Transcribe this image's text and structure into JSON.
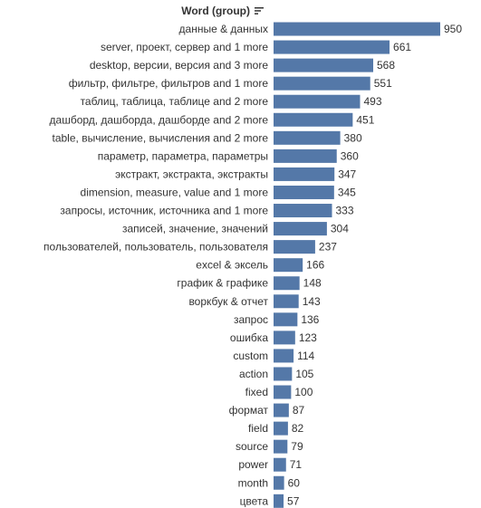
{
  "header": {
    "label": "Word (group)",
    "sort_icon": "sort-descending-icon"
  },
  "chart_data": {
    "type": "bar",
    "orientation": "horizontal",
    "title": "",
    "xlabel": "",
    "ylabel": "Word (group)",
    "xlim": [
      0,
      950
    ],
    "grid": false,
    "legend": "none",
    "bar_color": "#5478A8",
    "categories": [
      "данные & данных",
      "server, проект, сервер and 1 more",
      "desktop, версии, версия and 3 more",
      "фильтр, фильтре, фильтров and 1 more",
      "таблиц, таблица, таблице and 2 more",
      "дашборд, дашборда, дашборде and 2 more",
      "table, вычисление, вычисления and 2 more",
      "параметр, параметра, параметры",
      "экстракт, экстракта, экстракты",
      "dimension, measure, value and 1 more",
      "запросы, источник, источника and 1 more",
      "записей, значение, значений",
      "пользователей, пользователь, пользователя",
      "excel & эксель",
      "график & графике",
      "воркбук & отчет",
      "запрос",
      "ошибка",
      "custom",
      "action",
      "fixed",
      "формат",
      "field",
      "source",
      "power",
      "month",
      "цвета"
    ],
    "values": [
      950,
      661,
      568,
      551,
      493,
      451,
      380,
      360,
      347,
      345,
      333,
      304,
      237,
      166,
      148,
      143,
      136,
      123,
      114,
      105,
      100,
      87,
      82,
      79,
      71,
      60,
      57
    ]
  }
}
